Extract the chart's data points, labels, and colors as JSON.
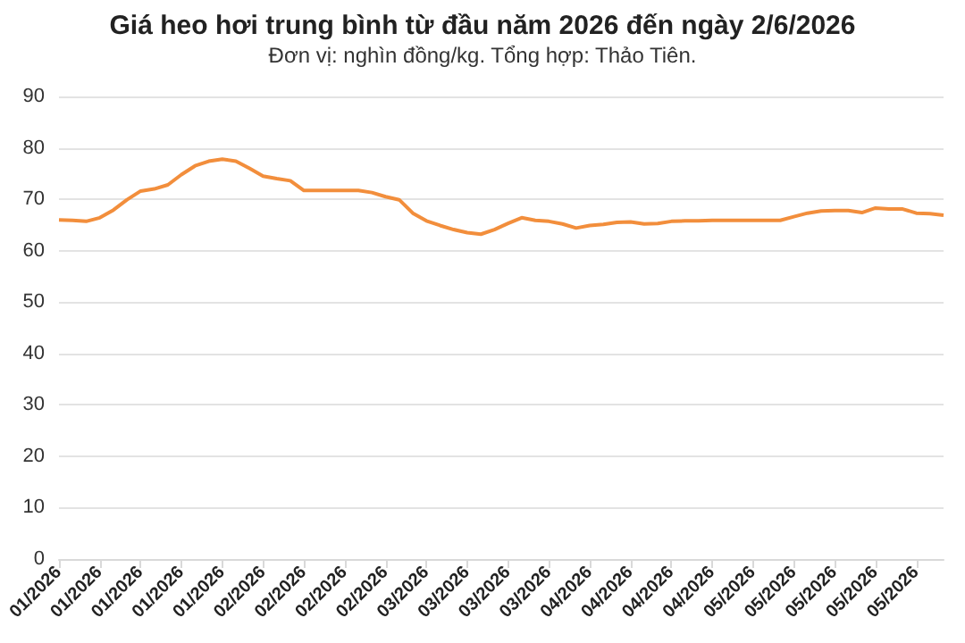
{
  "chart_data": {
    "type": "line",
    "title": "Giá heo hơi trung bình từ đầu năm 2026 đến ngày 2/6/2026",
    "subtitle": "Đơn vị: nghìn đồng/kg. Tổng hợp: Thảo Tiên.",
    "categories": [
      "01/2026",
      null,
      null,
      "01/2026",
      null,
      null,
      "01/2026",
      null,
      null,
      "01/2026",
      null,
      null,
      "01/2026",
      null,
      null,
      "02/2026",
      null,
      null,
      "02/2026",
      null,
      null,
      "02/2026",
      null,
      null,
      "02/2026",
      null,
      null,
      "03/2026",
      null,
      null,
      "03/2026",
      null,
      null,
      "03/2026",
      null,
      null,
      "03/2026",
      null,
      null,
      "04/2026",
      null,
      null,
      "04/2026",
      null,
      null,
      "04/2026",
      null,
      null,
      "04/2026",
      null,
      null,
      "05/2026",
      null,
      null,
      "05/2026",
      null,
      null,
      "05/2026",
      null,
      null,
      "05/2026",
      null,
      null,
      "05/2026",
      null,
      null
    ],
    "series": [
      {
        "color": "#f28e3c",
        "values": [
          66.0,
          65.9,
          65.7,
          66.4,
          67.9,
          69.9,
          71.6,
          72.0,
          72.8,
          74.8,
          76.5,
          77.4,
          77.8,
          77.4,
          76.0,
          74.5,
          74.0,
          73.6,
          71.7,
          71.7,
          71.7,
          71.7,
          71.7,
          71.3,
          70.5,
          69.9,
          67.3,
          65.8,
          64.9,
          64.1,
          63.5,
          63.2,
          64.1,
          65.3,
          66.4,
          65.9,
          65.7,
          65.2,
          64.4,
          64.9,
          65.1,
          65.5,
          65.6,
          65.2,
          65.3,
          65.7,
          65.8,
          65.8,
          65.9,
          65.9,
          65.9,
          65.9,
          65.9,
          65.9,
          66.6,
          67.3,
          67.7,
          67.8,
          67.8,
          67.4,
          68.3,
          68.1,
          68.1,
          67.3,
          67.2,
          66.9
        ]
      }
    ],
    "ylim": [
      0,
      90
    ],
    "yticks": [
      0,
      10,
      20,
      30,
      40,
      50,
      60,
      70,
      80,
      90
    ],
    "grid": "y",
    "marker": "none",
    "line_style": "solid"
  }
}
